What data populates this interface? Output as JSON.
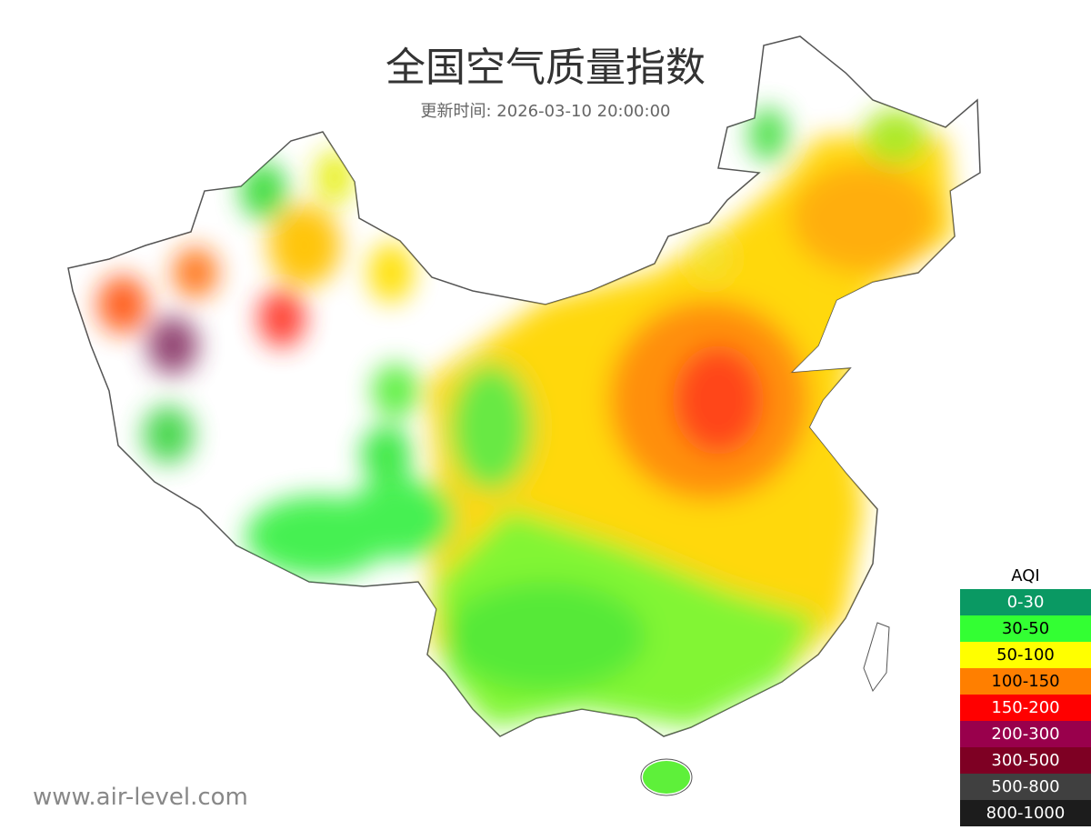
{
  "header": {
    "title": "全国空气质量指数",
    "subtitle": "更新时间: 2026-03-10 20:00:00"
  },
  "legend": {
    "title": "AQI",
    "items": [
      {
        "label": "0-30",
        "color": "#0a9963"
      },
      {
        "label": "30-50",
        "color": "#33ff33"
      },
      {
        "label": "50-100",
        "color": "#ffff00"
      },
      {
        "label": "100-150",
        "color": "#ff7f00"
      },
      {
        "label": "150-200",
        "color": "#ff0000"
      },
      {
        "label": "200-300",
        "color": "#99004c"
      },
      {
        "label": "300-500",
        "color": "#7e0023"
      },
      {
        "label": "500-800",
        "color": "#404040"
      },
      {
        "label": "800-1000",
        "color": "#1c1c1c"
      }
    ]
  },
  "footer": {
    "watermark": "www.air-level.com"
  }
}
